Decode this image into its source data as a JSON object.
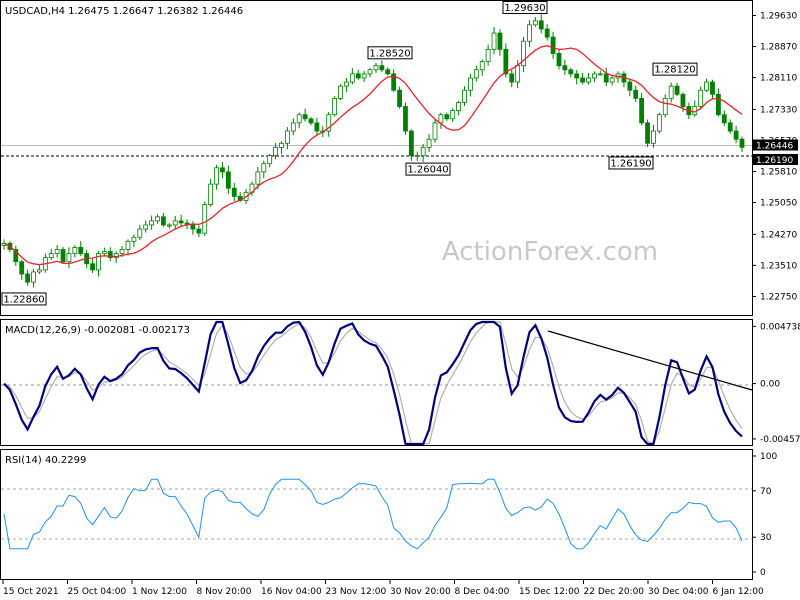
{
  "chart_data": [
    {
      "type": "candlestick",
      "title": "USDCAD,H4  1.26475 1.26647 1.26382 1.26446",
      "y_ticks": [
        "1.29630",
        "1.28870",
        "1.28110",
        "1.27330",
        "1.26570",
        "1.25810",
        "1.25050",
        "1.24270",
        "1.23510",
        "1.22750"
      ],
      "ylim": [
        1.2232,
        1.2996
      ],
      "current_price": "1.26446",
      "current_value": 1.26446,
      "hline_label": "1.26190",
      "hline_value": 1.2619,
      "annotations": [
        {
          "text": "1.28520",
          "value": 1.2852
        },
        {
          "text": "1.29630",
          "value": 1.2963
        },
        {
          "text": "1.28120",
          "value": 1.2812
        },
        {
          "text": "1.26040",
          "value": 1.2604
        },
        {
          "text": "1.26190",
          "value": 1.2619
        },
        {
          "text": "1.22860",
          "value": 1.2286
        }
      ],
      "watermark": "ActionForex.com",
      "candle_color": "#008000",
      "ma_color": "#e8232a",
      "close_series": [
        1.2405,
        1.239,
        1.236,
        1.233,
        1.231,
        1.2335,
        1.234,
        1.237,
        1.238,
        1.239,
        1.236,
        1.238,
        1.2395,
        1.238,
        1.2355,
        1.234,
        1.238,
        1.2385,
        1.237,
        1.238,
        1.239,
        1.241,
        1.242,
        1.244,
        1.245,
        1.246,
        1.247,
        1.245,
        1.245,
        1.246,
        1.2455,
        1.245,
        1.244,
        1.243,
        1.25,
        1.255,
        1.259,
        1.258,
        1.254,
        1.252,
        1.251,
        1.253,
        1.255,
        1.258,
        1.26,
        1.262,
        1.264,
        1.265,
        1.268,
        1.27,
        1.272,
        1.271,
        1.27,
        1.268,
        1.268,
        1.272,
        1.276,
        1.279,
        1.28,
        1.282,
        1.281,
        1.282,
        1.283,
        1.284,
        1.283,
        1.282,
        1.278,
        1.274,
        1.268,
        1.262,
        1.262,
        1.264,
        1.266,
        1.27,
        1.272,
        1.271,
        1.273,
        1.275,
        1.278,
        1.281,
        1.283,
        1.285,
        1.288,
        1.292,
        1.288,
        1.282,
        1.28,
        1.284,
        1.29,
        1.294,
        1.295,
        1.293,
        1.291,
        1.287,
        1.284,
        1.283,
        1.282,
        1.281,
        1.28,
        1.281,
        1.282,
        1.282,
        1.28,
        1.281,
        1.282,
        1.28,
        1.278,
        1.276,
        1.27,
        1.265,
        1.268,
        1.272,
        1.276,
        1.279,
        1.277,
        1.274,
        1.272,
        1.274,
        1.278,
        1.28,
        1.277,
        1.272,
        1.27,
        1.268,
        1.266,
        1.264
      ]
    },
    {
      "type": "line",
      "title": "MACD(12,26,9) -0.002081 -0.002173",
      "y_ticks": [
        "0.004738",
        "0.00",
        "-0.004578"
      ],
      "ylim": [
        -0.005,
        0.0051
      ],
      "trendline_color": "#000000",
      "macd_color": "#000080",
      "signal_color": "#b0b0b0"
    },
    {
      "type": "line",
      "title": "RSI(14) 40.2299",
      "y_ticks": [
        "100",
        "70",
        "30",
        "0"
      ],
      "ylim": [
        0,
        100
      ],
      "levels": [
        70,
        30
      ],
      "line_color": "#1e90ff"
    }
  ],
  "x_axis": {
    "labels": [
      "15 Oct 2021",
      "25 Oct 04:00",
      "1 Nov 12:00",
      "8 Nov 20:00",
      "16 Nov 04:00",
      "23 Nov 12:00",
      "30 Nov 20:00",
      "8 Dec 04:00",
      "15 Dec 12:00",
      "22 Dec 20:00",
      "30 Dec 04:00",
      "6 Jan 12:00"
    ]
  }
}
